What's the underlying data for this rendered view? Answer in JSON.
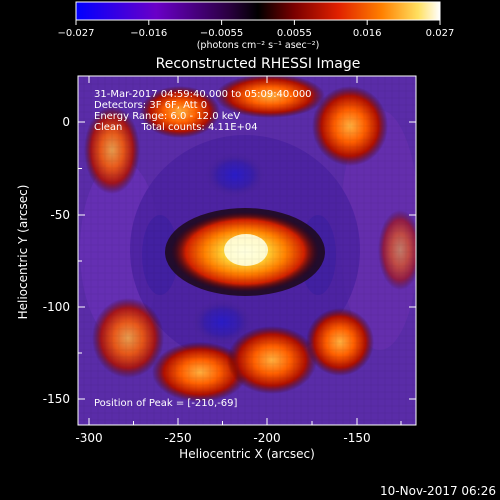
{
  "colorbar": {
    "ticks": [
      "−0.027",
      "−0.016",
      "−0.0055",
      "0.0055",
      "0.016",
      "0.027"
    ],
    "units": "(photons cm⁻² s⁻¹ asec⁻²)",
    "stops": [
      "#0000ff",
      "#6a00c8",
      "#2a0040",
      "#000000",
      "#7a0000",
      "#e02000",
      "#ff8000",
      "#ffe060",
      "#ffffff"
    ]
  },
  "image": {
    "title": "Reconstructed RHESSI Image",
    "info": [
      "31-Mar-2017 04:59:40.000 to 05:09:40.000",
      "Detectors: 3F 6F, Att 0",
      "Energy Range: 6.0 - 12.0 keV",
      "Clean      Total counts: 4.11E+04"
    ],
    "peak_text": "Position of Peak = [-210,-69]",
    "xlabel": "Heliocentric X (arcsec)",
    "ylabel": "Heliocentric Y (arcsec)",
    "xticks": [
      "-300",
      "-250",
      "-200",
      "-150"
    ],
    "yticks": [
      "0",
      "-50",
      "-100",
      "-150"
    ],
    "peak": {
      "x": -210,
      "y": -69
    },
    "x_range": [
      -310,
      -115
    ],
    "y_range": [
      -165,
      20
    ]
  },
  "footer": {
    "timestamp": "10-Nov-2017 06:26"
  }
}
